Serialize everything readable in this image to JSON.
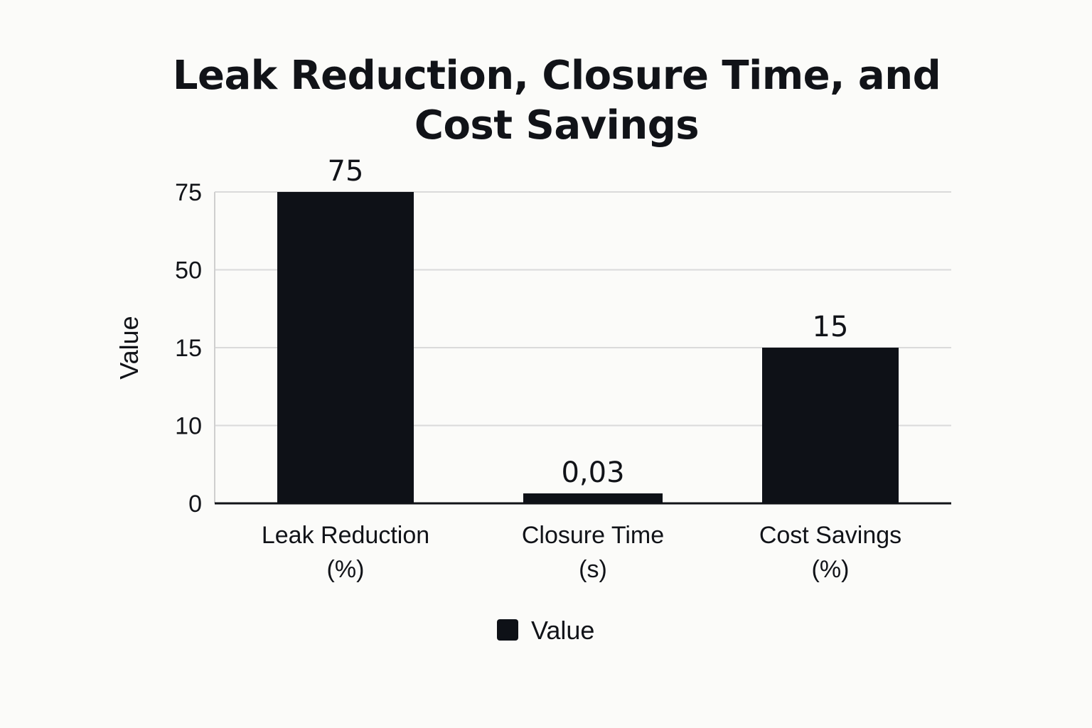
{
  "chart_data": {
    "type": "bar",
    "title_lines": [
      "Leak Reduction, Closure Time, and",
      "Cost Savings"
    ],
    "title": "Leak Reduction, Closure Time, and Cost Savings",
    "xlabel": "",
    "ylabel": "Value",
    "y_ticks": [
      "0",
      "10",
      "15",
      "50",
      "75"
    ],
    "categories": [
      {
        "lines": [
          "Leak Reduction",
          "(%)"
        ]
      },
      {
        "lines": [
          "Closure Time",
          "(s)"
        ]
      },
      {
        "lines": [
          "Cost Savings",
          "(%)"
        ]
      }
    ],
    "series": [
      {
        "name": "Value",
        "color": "#0e1117",
        "values": [
          75,
          0.03,
          15
        ],
        "data_labels": [
          "75",
          "0,03",
          "15"
        ]
      }
    ],
    "grid": true,
    "legend_position": "bottom-center"
  }
}
